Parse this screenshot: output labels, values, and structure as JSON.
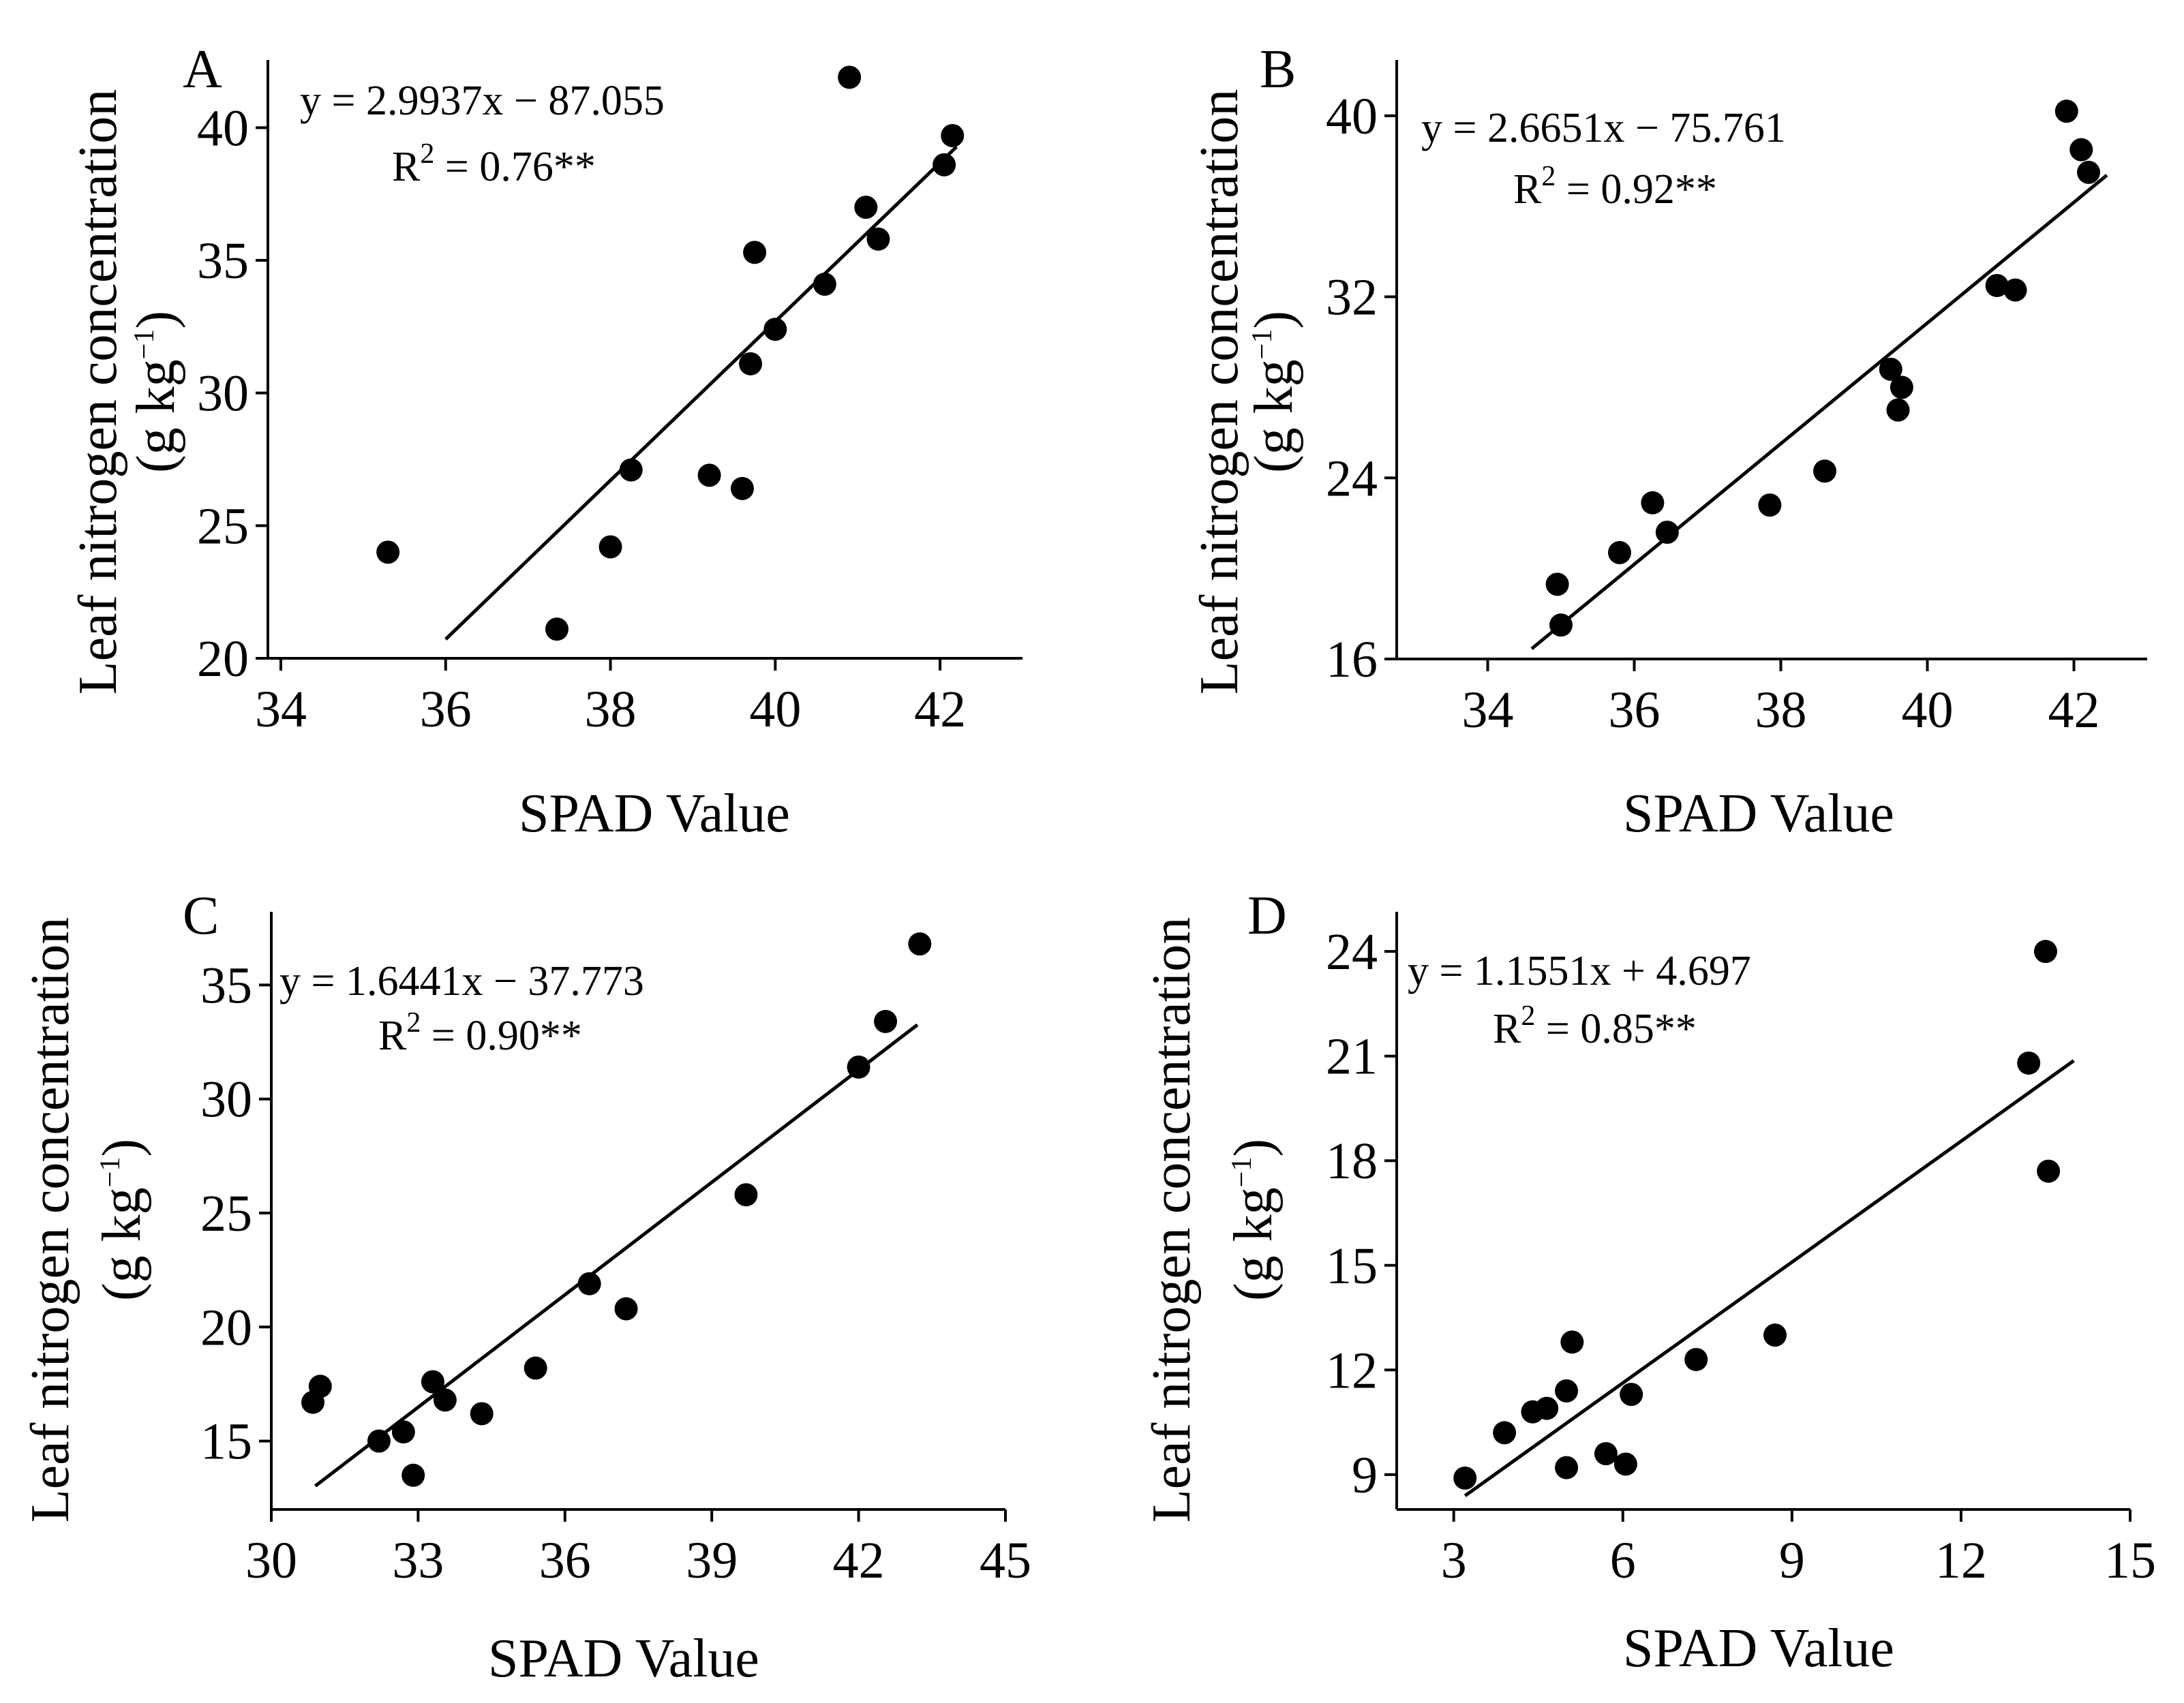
{
  "colors": {
    "ink": "#000000",
    "background": "#ffffff"
  },
  "chart_data": [
    {
      "id": "A",
      "type": "scatter",
      "panel_label": "A",
      "xlabel": "SPAD Value",
      "ylabel": "Leaf nitrogen concentration",
      "ylabel_unit": "(g kg",
      "ylabel_sup": "−1",
      "ylabel_unit_close": ")",
      "equation": "y = 2.9937x − 87.055",
      "r2_prefix": "R",
      "r2_sup": "2",
      "r2_suffix": " = 0.76**",
      "xlim": [
        34,
        43
      ],
      "ylim": [
        20,
        42.5
      ],
      "xticks": [
        34,
        36,
        38,
        40,
        42
      ],
      "yticks": [
        20,
        25,
        30,
        35,
        40
      ],
      "fit": {
        "slope": 2.9937,
        "intercept": -87.055,
        "x_range": [
          36.0,
          42.2
        ]
      },
      "points": [
        [
          35.3,
          24.0
        ],
        [
          37.35,
          21.1
        ],
        [
          38.0,
          24.2
        ],
        [
          38.25,
          27.1
        ],
        [
          39.2,
          26.9
        ],
        [
          39.6,
          26.4
        ],
        [
          39.7,
          31.1
        ],
        [
          39.75,
          35.3
        ],
        [
          40.0,
          32.4
        ],
        [
          40.6,
          34.1
        ],
        [
          40.9,
          41.9
        ],
        [
          41.1,
          37.0
        ],
        [
          41.25,
          35.8
        ],
        [
          42.05,
          38.6
        ],
        [
          42.15,
          39.7
        ]
      ]
    },
    {
      "id": "B",
      "type": "scatter",
      "panel_label": "B",
      "xlabel": "SPAD Value",
      "ylabel": "Leaf nitrogen concentration",
      "ylabel_unit": "(g kg",
      "ylabel_sup": "−1",
      "ylabel_unit_close": ")",
      "equation": "y = 2.6651x − 75.761",
      "r2_prefix": "R",
      "r2_sup": "2",
      "r2_suffix": " = 0.92**",
      "xlim": [
        33,
        43
      ],
      "ylim": [
        16,
        41.5
      ],
      "xticks": [
        34,
        36,
        38,
        40,
        42
      ],
      "yticks": [
        16,
        24,
        32,
        40
      ],
      "fit": {
        "slope": 2.6651,
        "intercept": -75.761,
        "x_range": [
          34.6,
          42.45
        ]
      },
      "points": [
        [
          34.95,
          19.3
        ],
        [
          35.0,
          17.5
        ],
        [
          35.8,
          20.7
        ],
        [
          36.25,
          22.9
        ],
        [
          36.45,
          21.6
        ],
        [
          37.85,
          22.8
        ],
        [
          38.6,
          24.3
        ],
        [
          39.5,
          28.8
        ],
        [
          39.6,
          27.0
        ],
        [
          39.65,
          28.0
        ],
        [
          40.95,
          32.5
        ],
        [
          41.2,
          32.3
        ],
        [
          41.9,
          40.2
        ],
        [
          42.1,
          38.5
        ],
        [
          42.2,
          37.5
        ]
      ]
    },
    {
      "id": "C",
      "type": "scatter",
      "panel_label": "C",
      "xlabel": "SPAD Value",
      "ylabel": "Leaf nitrogen concentration",
      "ylabel_unit": "(g kg",
      "ylabel_sup": "−1",
      "ylabel_unit_close": ")",
      "equation": "y = 1.6441x − 37.773",
      "r2_prefix": "R",
      "r2_sup": "2",
      "r2_suffix": " = 0.90**",
      "xlim": [
        30,
        45
      ],
      "ylim": [
        12,
        38
      ],
      "xticks": [
        30,
        33,
        36,
        39,
        42,
        45
      ],
      "yticks": [
        15,
        20,
        25,
        30,
        35
      ],
      "fit": {
        "slope": 1.6441,
        "intercept": -37.773,
        "x_range": [
          30.9,
          43.2
        ]
      },
      "points": [
        [
          30.85,
          16.7
        ],
        [
          31.0,
          17.4
        ],
        [
          32.2,
          15.0
        ],
        [
          32.7,
          15.4
        ],
        [
          32.9,
          13.5
        ],
        [
          33.3,
          17.6
        ],
        [
          33.55,
          16.8
        ],
        [
          34.3,
          16.2
        ],
        [
          35.4,
          18.2
        ],
        [
          36.5,
          21.9
        ],
        [
          37.25,
          20.8
        ],
        [
          39.7,
          25.8
        ],
        [
          42.0,
          31.4
        ],
        [
          42.55,
          33.4
        ],
        [
          43.25,
          36.8
        ]
      ]
    },
    {
      "id": "D",
      "type": "scatter",
      "panel_label": "D",
      "xlabel": "SPAD Value",
      "ylabel": "Leaf nitrogen concentration",
      "ylabel_unit": "(g kg",
      "ylabel_sup": "−1",
      "ylabel_unit_close": ")",
      "equation": "y = 1.1551x + 4.697",
      "r2_prefix": "R",
      "r2_sup": "2",
      "r2_suffix": " = 0.85**",
      "xlim": [
        2,
        15
      ],
      "ylim": [
        8,
        25
      ],
      "xticks": [
        3,
        6,
        9,
        12,
        15
      ],
      "yticks": [
        9,
        12,
        15,
        18,
        21,
        24
      ],
      "fit": {
        "slope": 1.1551,
        "intercept": 4.697,
        "x_range": [
          3.2,
          14.0
        ]
      },
      "points": [
        [
          3.2,
          8.9
        ],
        [
          3.9,
          10.2
        ],
        [
          4.4,
          10.8
        ],
        [
          4.65,
          10.9
        ],
        [
          5.0,
          11.4
        ],
        [
          5.0,
          9.2
        ],
        [
          5.1,
          12.8
        ],
        [
          5.7,
          9.6
        ],
        [
          6.05,
          9.3
        ],
        [
          6.15,
          11.3
        ],
        [
          7.3,
          12.3
        ],
        [
          8.7,
          13.0
        ],
        [
          13.2,
          20.8
        ],
        [
          13.5,
          24.0
        ],
        [
          13.55,
          17.7
        ]
      ]
    }
  ]
}
